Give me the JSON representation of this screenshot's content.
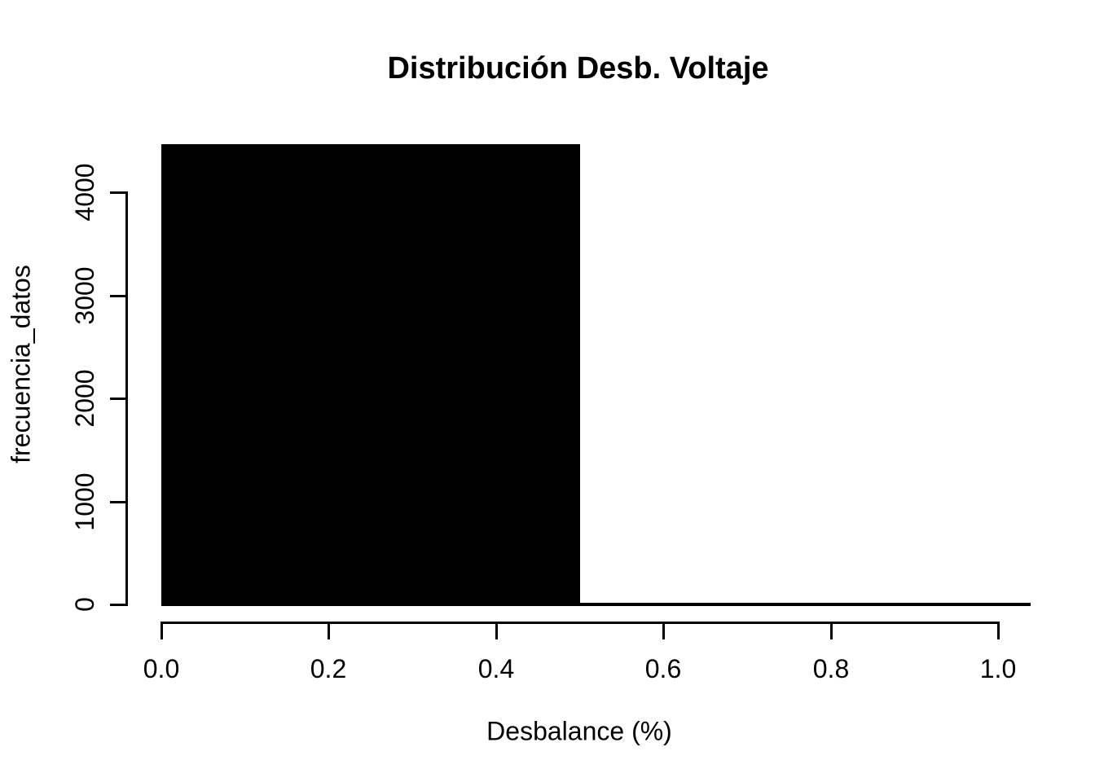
{
  "figure": {
    "background": "#ffffff",
    "foreground": "#000000"
  },
  "chart_data": {
    "type": "bar",
    "subtype": "histogram",
    "title": "Distribución Desb. Voltaje",
    "xlabel": "Desbalance (%)",
    "ylabel": "frecuencia_datos",
    "bar_fill": "#000000",
    "bar_border": "#000000",
    "text_color": "#000000",
    "grid": false,
    "legend": null,
    "xlim": [
      0.0,
      1.0
    ],
    "ylim": [
      0,
      4000
    ],
    "x_ticks": [
      {
        "value": 0.0,
        "label": "0.0"
      },
      {
        "value": 0.2,
        "label": "0.2"
      },
      {
        "value": 0.4,
        "label": "0.4"
      },
      {
        "value": 0.6,
        "label": "0.6"
      },
      {
        "value": 0.8,
        "label": "0.8"
      },
      {
        "value": 1.0,
        "label": "1.0"
      }
    ],
    "y_ticks": [
      {
        "value": 0,
        "label": "0"
      },
      {
        "value": 1000,
        "label": "1000"
      },
      {
        "value": 2000,
        "label": "2000"
      },
      {
        "value": 3000,
        "label": "3000"
      },
      {
        "value": 4000,
        "label": "4000"
      }
    ],
    "bins": [
      {
        "x0": 0.0,
        "x1": 0.5,
        "count": 4470
      },
      {
        "x0": 0.5,
        "x1": 1.0,
        "count": 0
      }
    ]
  }
}
